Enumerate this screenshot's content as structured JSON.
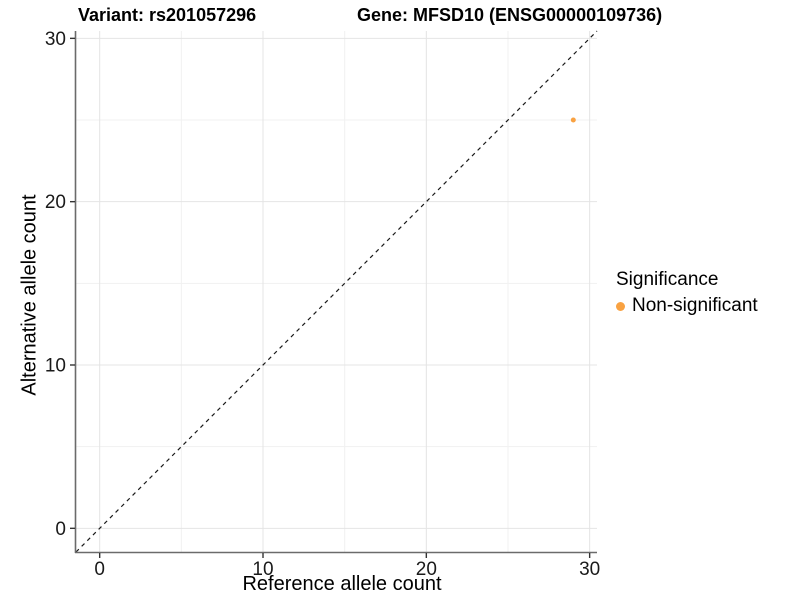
{
  "header": {
    "title_left": "Variant: rs201057296",
    "title_right": "Gene: MFSD10 (ENSG00000109736)"
  },
  "chart_data": {
    "type": "scatter",
    "title": "Variant: rs201057296    Gene: MFSD10 (ENSG00000109736)",
    "xlabel": "Reference allele count",
    "ylabel": "Alternative allele count",
    "xlim": [
      -1.45,
      30.45
    ],
    "ylim": [
      -1.45,
      30.45
    ],
    "x_major_ticks": [
      0,
      10,
      20,
      30
    ],
    "y_major_ticks": [
      0,
      10,
      20,
      30
    ],
    "x_minor_ticks": [
      5,
      15,
      25
    ],
    "y_minor_ticks": [
      5,
      15,
      25
    ],
    "grid": true,
    "points": [
      {
        "x": 29,
        "y": 25,
        "series": "Non-significant"
      }
    ],
    "reference_line": {
      "slope": 1,
      "intercept": 0,
      "style": "dashed"
    },
    "legend_position": "right"
  },
  "legend": {
    "title": "Significance",
    "items": [
      {
        "label": "Non-significant",
        "color": "#F9A242"
      }
    ]
  },
  "colors": {
    "point": "#F9A242",
    "grid_major": "#e4e4e4",
    "grid_minor": "#f1f1f1",
    "axis_line": "#6b6b6b",
    "tick_mark": "#333333",
    "tick_label": "#1a1a1a",
    "reference_line": "#1a1a1a",
    "background": "#ffffff"
  }
}
